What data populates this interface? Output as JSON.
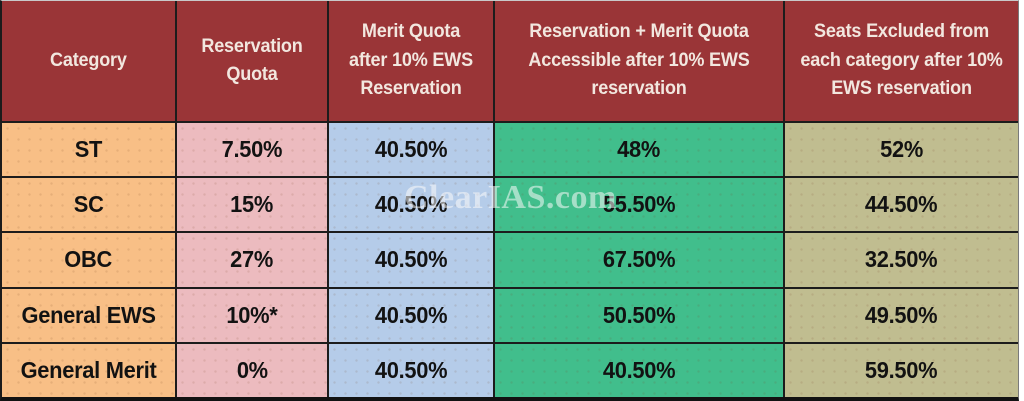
{
  "watermark": "ClearIAS.com",
  "colors": {
    "header_bg": "#9A3537",
    "header_text": "#F2E7DF",
    "category_bg": "#F8BF86",
    "reservation_quota_bg": "#ECBBBF",
    "merit_quota_bg": "#B5CCE9",
    "accessible_quota_bg": "#41BE8C",
    "excluded_seats_bg": "#C0BD90",
    "border": "#1C1C1C"
  },
  "chart_data": {
    "type": "table",
    "columns": [
      "Category",
      "Reservation Quota",
      "Merit Quota after 10% EWS Reservation",
      "Reservation + Merit Quota Accessible after 10% EWS reservation",
      "Seats Excluded from each category after 10% EWS reservation"
    ],
    "rows": [
      [
        "ST",
        "7.50%",
        "40.50%",
        "48%",
        "52%"
      ],
      [
        "SC",
        "15%",
        "40.50%",
        "55.50%",
        "44.50%"
      ],
      [
        "OBC",
        "27%",
        "40.50%",
        "67.50%",
        "32.50%"
      ],
      [
        "General EWS",
        "10%*",
        "40.50%",
        "50.50%",
        "49.50%"
      ],
      [
        "General Merit",
        "0%",
        "40.50%",
        "40.50%",
        "59.50%"
      ]
    ]
  }
}
